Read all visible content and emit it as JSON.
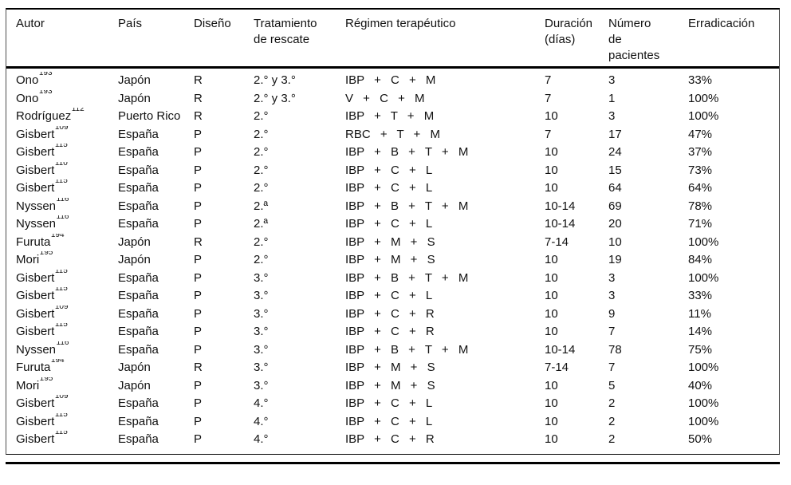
{
  "accent_colors": {
    "rule": "#000000",
    "text": "#111111",
    "background": "#ffffff"
  },
  "table": {
    "columns": [
      {
        "key": "autor",
        "label": "Autor"
      },
      {
        "key": "pais",
        "label": "País"
      },
      {
        "key": "diseno",
        "label": "Diseño"
      },
      {
        "key": "tratamiento",
        "label": "Tratamiento\nde rescate"
      },
      {
        "key": "regimen",
        "label": "Régimen terapéutico"
      },
      {
        "key": "duracion",
        "label": "Duración\n(días)"
      },
      {
        "key": "numero",
        "label": "Número\nde\npacientes"
      },
      {
        "key": "erradicacion",
        "label": "Erradicación"
      }
    ],
    "rows": [
      {
        "autor": "Ono",
        "ref": "193",
        "pais": "Japón",
        "diseno": "R",
        "tratamiento": "2.° y 3.°",
        "regimen": "IBP + C + M",
        "duracion": "7",
        "numero": "3",
        "erradicacion": "33%"
      },
      {
        "autor": "Ono",
        "ref": "193",
        "pais": "Japón",
        "diseno": "R",
        "tratamiento": "2.° y 3.°",
        "regimen": "V + C + M",
        "duracion": "7",
        "numero": "1",
        "erradicacion": "100%"
      },
      {
        "autor": "Rodríguez",
        "ref": "112",
        "pais": "Puerto Rico",
        "diseno": "R",
        "tratamiento": "2.°",
        "regimen": "IBP + T + M",
        "duracion": "10",
        "numero": "3",
        "erradicacion": "100%"
      },
      {
        "autor": "Gisbert",
        "ref": "109",
        "pais": "España",
        "diseno": "P",
        "tratamiento": "2.°",
        "regimen": "RBC + T + M",
        "duracion": "7",
        "numero": "17",
        "erradicacion": "47%"
      },
      {
        "autor": "Gisbert",
        "ref": "115",
        "pais": "España",
        "diseno": "P",
        "tratamiento": "2.°",
        "regimen": "IBP + B + T + M",
        "duracion": "10",
        "numero": "24",
        "erradicacion": "37%"
      },
      {
        "autor": "Gisbert",
        "ref": "110",
        "pais": "España",
        "diseno": "P",
        "tratamiento": "2.°",
        "regimen": "IBP + C + L",
        "duracion": "10",
        "numero": "15",
        "erradicacion": "73%"
      },
      {
        "autor": "Gisbert",
        "ref": "115",
        "pais": "España",
        "diseno": "P",
        "tratamiento": "2.°",
        "regimen": "IBP + C + L",
        "duracion": "10",
        "numero": "64",
        "erradicacion": "64%"
      },
      {
        "autor": "Nyssen",
        "ref": "116",
        "pais": "España",
        "diseno": "P",
        "tratamiento": "2.ª",
        "regimen": "IBP + B + T + M",
        "duracion": "10-14",
        "numero": "69",
        "erradicacion": "78%"
      },
      {
        "autor": "Nyssen",
        "ref": "116",
        "pais": "España",
        "diseno": "P",
        "tratamiento": "2.ª",
        "regimen": "IBP + C + L",
        "duracion": "10-14",
        "numero": "20",
        "erradicacion": "71%"
      },
      {
        "autor": "Furuta",
        "ref": "194",
        "pais": "Japón",
        "diseno": "R",
        "tratamiento": "2.°",
        "regimen": "IBP + M + S",
        "duracion": "7-14",
        "numero": "10",
        "erradicacion": "100%"
      },
      {
        "autor": "Mori",
        "ref": "195",
        "pais": "Japón",
        "diseno": "P",
        "tratamiento": "2.°",
        "regimen": "IBP + M + S",
        "duracion": "10",
        "numero": "19",
        "erradicacion": "84%"
      },
      {
        "autor": "Gisbert",
        "ref": "115",
        "pais": "España",
        "diseno": "P",
        "tratamiento": "3.°",
        "regimen": "IBP + B + T + M",
        "duracion": "10",
        "numero": "3",
        "erradicacion": "100%"
      },
      {
        "autor": "Gisbert",
        "ref": "115",
        "pais": "España",
        "diseno": "P",
        "tratamiento": "3.°",
        "regimen": "IBP + C + L",
        "duracion": "10",
        "numero": "3",
        "erradicacion": "33%"
      },
      {
        "autor": "Gisbert",
        "ref": "109",
        "pais": "España",
        "diseno": "P",
        "tratamiento": "3.°",
        "regimen": "IBP + C + R",
        "duracion": "10",
        "numero": "9",
        "erradicacion": "11%"
      },
      {
        "autor": "Gisbert",
        "ref": "115",
        "pais": "España",
        "diseno": "P",
        "tratamiento": "3.°",
        "regimen": "IBP + C + R",
        "duracion": "10",
        "numero": "7",
        "erradicacion": "14%"
      },
      {
        "autor": "Nyssen",
        "ref": "116",
        "pais": "España",
        "diseno": "P",
        "tratamiento": "3.°",
        "regimen": "IBP + B + T + M",
        "duracion": "10-14",
        "numero": "78",
        "erradicacion": "75%"
      },
      {
        "autor": "Furuta",
        "ref": "194",
        "pais": "Japón",
        "diseno": "R",
        "tratamiento": "3.°",
        "regimen": "IBP + M + S",
        "duracion": "7-14",
        "numero": "7",
        "erradicacion": "100%"
      },
      {
        "autor": "Mori",
        "ref": "195",
        "pais": "Japón",
        "diseno": "P",
        "tratamiento": "3.°",
        "regimen": "IBP + M + S",
        "duracion": "10",
        "numero": "5",
        "erradicacion": "40%"
      },
      {
        "autor": "Gisbert",
        "ref": "109",
        "pais": "España",
        "diseno": "P",
        "tratamiento": "4.°",
        "regimen": "IBP + C + L",
        "duracion": "10",
        "numero": "2",
        "erradicacion": "100%"
      },
      {
        "autor": "Gisbert",
        "ref": "115",
        "pais": "España",
        "diseno": "P",
        "tratamiento": "4.°",
        "regimen": "IBP + C + L",
        "duracion": "10",
        "numero": "2",
        "erradicacion": "100%"
      },
      {
        "autor": "Gisbert",
        "ref": "115",
        "pais": "España",
        "diseno": "P",
        "tratamiento": "4.°",
        "regimen": "IBP + C + R",
        "duracion": "10",
        "numero": "2",
        "erradicacion": "50%"
      }
    ]
  }
}
